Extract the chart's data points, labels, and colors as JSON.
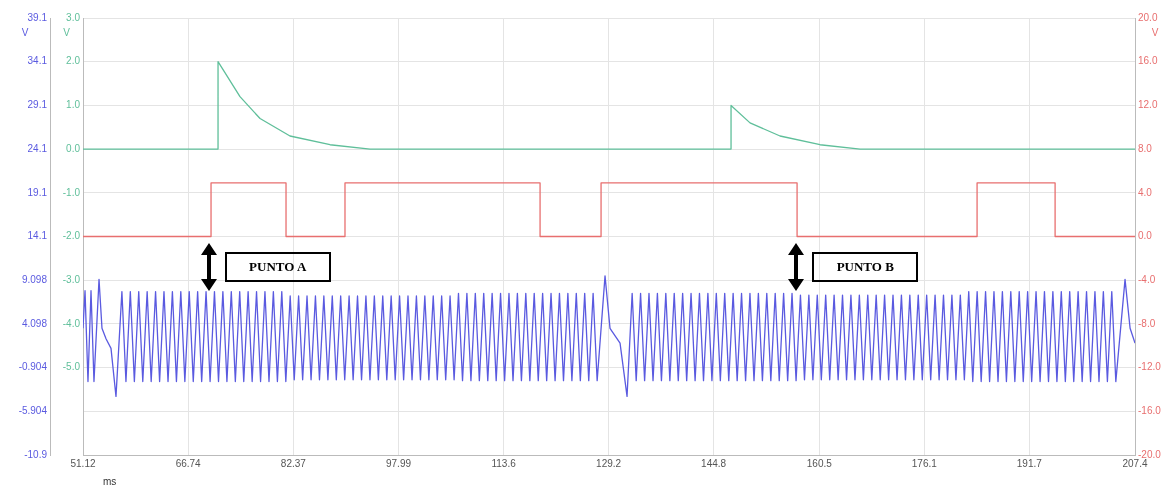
{
  "chart_data": {
    "type": "line",
    "xlabel": "ms",
    "ylabel": "V",
    "y2label": "V",
    "y3label": "V",
    "xlim": [
      51.12,
      207.4
    ],
    "xticks": [
      51.12,
      66.74,
      82.37,
      97.99,
      113.6,
      129.2,
      144.8,
      160.5,
      176.1,
      191.7,
      207.4
    ],
    "ylim": [
      -10.9,
      39.1
    ],
    "yticks": [
      39.1,
      34.1,
      29.1,
      24.1,
      19.1,
      14.1,
      9.098,
      4.098,
      -0.904,
      -5.904,
      -10.9
    ],
    "y2lim": [
      -7,
      3
    ],
    "y2ticks": [
      {
        "value": 3,
        "label": "3.0"
      },
      {
        "value": 2,
        "label": "2.0"
      },
      {
        "value": 1,
        "label": "1.0"
      },
      {
        "value": 0,
        "label": "0.0"
      },
      {
        "value": -1,
        "label": "-1.0"
      },
      {
        "value": -2,
        "label": "-2.0"
      },
      {
        "value": -3,
        "label": "-3.0"
      },
      {
        "value": -4,
        "label": "-4.0"
      },
      {
        "value": -5,
        "label": "-5.0"
      }
    ],
    "y3lim": [
      -20,
      20
    ],
    "y3ticks": [
      {
        "value": 20,
        "label": "20.0"
      },
      {
        "value": 16,
        "label": "16.0"
      },
      {
        "value": 12,
        "label": "12.0"
      },
      {
        "value": 8,
        "label": "8.0"
      },
      {
        "value": 4,
        "label": "4.0"
      },
      {
        "value": 0,
        "label": "0.0"
      },
      {
        "value": -4,
        "label": "-4.0"
      },
      {
        "value": -8,
        "label": "-8.0"
      },
      {
        "value": -12,
        "label": "-12.0"
      },
      {
        "value": -16,
        "label": "-16.0"
      },
      {
        "value": -20,
        "label": "-20.0"
      }
    ],
    "grid": true,
    "legend": false,
    "marker": "none",
    "line_style": "solid",
    "annotations": [
      "PUNTO A",
      "PUNTO B"
    ],
    "series": [
      {
        "color": "#5a5ae0",
        "x": [
          51.12,
          51.42,
          51.86,
          52.31,
          52.75,
          53.5,
          53.94,
          54.54,
          55.28,
          56.02,
          56.9,
          57.5,
          58.15,
          58.75,
          59.4,
          60,
          60.65,
          61.25,
          61.9,
          62.5,
          63.15,
          63.75,
          64.4,
          65,
          65.65,
          66.25,
          66.9,
          67.5,
          68.15,
          68.75,
          69.4,
          70,
          70.65,
          71.25,
          71.9,
          72.5,
          73.15,
          73.75,
          74.4,
          75,
          75.65,
          76.25,
          76.9,
          77.5,
          78.15,
          78.75,
          79.4,
          80,
          80.65,
          81.25,
          81.9,
          82.5,
          83.15,
          83.75,
          84.4,
          85,
          85.65,
          86.25,
          86.9,
          87.5,
          88.15,
          88.75,
          89.4,
          90,
          90.65,
          91.25,
          91.9,
          92.5,
          93.15,
          93.75,
          94.4,
          95,
          95.65,
          96.25,
          96.9,
          97.5,
          98.15,
          98.75,
          99.4,
          100,
          100.65,
          101.25,
          101.9,
          102.5,
          103.15,
          103.75,
          104.4,
          105,
          105.65,
          106.25,
          106.9,
          107.5,
          108.15,
          108.75,
          109.4,
          110,
          110.65,
          111.25,
          111.9,
          112.5,
          113.15,
          113.75,
          114.4,
          115,
          115.65,
          116.25,
          116.9,
          117.5,
          118.15,
          118.75,
          119.4,
          120,
          120.65,
          121.25,
          121.9,
          122.5,
          123.15,
          123.75,
          124.4,
          125,
          125.65,
          126.25,
          126.9,
          127.5,
          128.67,
          129.41,
          130.9,
          131.94,
          132.7,
          133.3,
          133.95,
          134.55,
          135.2,
          135.8,
          136.45,
          137.05,
          137.7,
          138.3,
          138.95,
          139.55,
          140.2,
          140.8,
          141.45,
          142.05,
          142.7,
          143.3,
          143.95,
          144.55,
          145.2,
          145.8,
          146.45,
          147.05,
          147.7,
          148.3,
          148.95,
          149.55,
          150.2,
          150.8,
          151.45,
          152.05,
          152.7,
          153.3,
          153.95,
          154.55,
          155.2,
          155.8,
          156.45,
          157.05,
          157.7,
          158.3,
          158.95,
          159.55,
          160.2,
          160.8,
          161.45,
          162.05,
          162.7,
          163.3,
          163.95,
          164.55,
          165.2,
          165.8,
          166.45,
          167.05,
          167.7,
          168.3,
          168.95,
          169.55,
          170.2,
          170.8,
          171.45,
          172.05,
          172.7,
          173.3,
          173.95,
          174.55,
          175.2,
          175.8,
          176.45,
          177.05,
          177.7,
          178.3,
          178.95,
          179.55,
          180.2,
          180.8,
          181.45,
          182.05,
          182.7,
          183.3,
          183.95,
          184.55,
          185.2,
          185.8,
          186.45,
          187.05,
          187.7,
          188.3,
          188.95,
          189.55,
          190.2,
          190.8,
          191.45,
          192.05,
          192.7,
          193.3,
          193.95,
          194.55,
          195.2,
          195.8,
          196.45,
          197.05,
          197.7,
          198.3,
          198.95,
          199.55,
          200.2,
          200.8,
          201.45,
          202.05,
          202.7,
          203.3,
          203.95,
          204.55,
          205.92,
          206.67,
          207.4
        ],
        "values": [
          3.6,
          7.9,
          -2.5,
          7.9,
          -2.5,
          9.2,
          3.6,
          2.4,
          1.3,
          -4.2,
          7.8,
          -2.5,
          7.8,
          -2.5,
          7.8,
          -2.5,
          7.8,
          -2.5,
          7.8,
          -2.5,
          7.8,
          -2.5,
          7.8,
          -2.5,
          7.8,
          -2.5,
          7.8,
          -2.5,
          7.8,
          -2.5,
          7.8,
          -2.5,
          7.8,
          -2.5,
          7.8,
          -2.5,
          7.8,
          -2.5,
          7.8,
          -2.5,
          7.8,
          -2.5,
          7.8,
          -2.5,
          7.8,
          -2.5,
          7.8,
          -2.5,
          7.8,
          -2.5,
          7.3,
          -2.3,
          7.3,
          -2.3,
          7.3,
          -2.3,
          7.3,
          -2.3,
          7.3,
          -2.3,
          7.3,
          -2.3,
          7.3,
          -2.3,
          7.3,
          -2.3,
          7.3,
          -2.3,
          7.3,
          -2.3,
          7.3,
          -2.3,
          7.3,
          -2.3,
          7.3,
          -2.3,
          7.3,
          -2.3,
          7.3,
          -2.3,
          7.3,
          -2.3,
          7.3,
          -2.3,
          7.3,
          -2.3,
          7.3,
          -2.3,
          7.3,
          -2.3,
          7.6,
          -2.4,
          7.6,
          -2.4,
          7.6,
          -2.4,
          7.6,
          -2.4,
          7.6,
          -2.4,
          7.6,
          -2.4,
          7.6,
          -2.4,
          7.6,
          -2.4,
          7.6,
          -2.4,
          7.6,
          -2.4,
          7.6,
          -2.4,
          7.6,
          -2.4,
          7.6,
          -2.4,
          7.6,
          -2.4,
          7.6,
          -2.4,
          7.6,
          -2.4,
          7.6,
          -2.4,
          9.6,
          3.6,
          1.9,
          -4.2,
          7.6,
          -2.4,
          7.6,
          -2.4,
          7.6,
          -2.4,
          7.6,
          -2.4,
          7.6,
          -2.4,
          7.6,
          -2.4,
          7.6,
          -2.4,
          7.6,
          -2.4,
          7.6,
          -2.4,
          7.6,
          -2.4,
          7.6,
          -2.4,
          7.6,
          -2.4,
          7.6,
          -2.4,
          7.6,
          -2.4,
          7.6,
          -2.4,
          7.6,
          -2.4,
          7.6,
          -2.4,
          7.6,
          -2.4,
          7.6,
          -2.4,
          7.6,
          -2.4,
          7.4,
          -2.3,
          7.4,
          -2.3,
          7.4,
          -2.3,
          7.4,
          -2.3,
          7.4,
          -2.3,
          7.4,
          -2.3,
          7.4,
          -2.3,
          7.4,
          -2.3,
          7.4,
          -2.3,
          7.4,
          -2.3,
          7.4,
          -2.3,
          7.4,
          -2.3,
          7.4,
          -2.3,
          7.4,
          -2.3,
          7.4,
          -2.3,
          7.4,
          -2.3,
          7.4,
          -2.3,
          7.4,
          -2.3,
          7.4,
          -2.3,
          7.4,
          -2.3,
          7.8,
          -2.5,
          7.8,
          -2.5,
          7.8,
          -2.5,
          7.8,
          -2.5,
          7.8,
          -2.5,
          7.8,
          -2.5,
          7.8,
          -2.5,
          7.8,
          -2.5,
          7.8,
          -2.5,
          7.8,
          -2.5,
          7.8,
          -2.5,
          7.8,
          -2.5,
          7.8,
          -2.5,
          7.8,
          -2.5,
          7.8,
          -2.5,
          7.8,
          -2.5,
          7.8,
          -2.5,
          7.8,
          -2.5,
          9.2,
          3.6,
          1.9
        ]
      },
      {
        "color": "#5fbf9a",
        "axis": "y2",
        "x": [
          51.12,
          71.18,
          71.18,
          74.44,
          77.42,
          81.87,
          87.82,
          93.76,
          147.39,
          147.39,
          150.21,
          154.67,
          160.61,
          166.56,
          207.4
        ],
        "values": [
          0,
          0,
          2,
          1.2,
          0.7,
          0.3,
          0.1,
          0,
          0,
          1,
          0.6,
          0.3,
          0.1,
          0,
          0
        ]
      },
      {
        "color": "#e86f6f",
        "axis": "y3",
        "x": [
          51.12,
          70.14,
          70.14,
          81.28,
          81.28,
          90.04,
          90.04,
          119.02,
          119.02,
          128.08,
          128.08,
          157.2,
          157.2,
          183.94,
          183.94,
          195.53,
          195.53,
          207.4
        ],
        "values": [
          0,
          0,
          4.9,
          4.9,
          0,
          0,
          4.9,
          4.9,
          0,
          0,
          4.9,
          4.9,
          0,
          0,
          4.9,
          4.9,
          0,
          0
        ]
      }
    ]
  }
}
